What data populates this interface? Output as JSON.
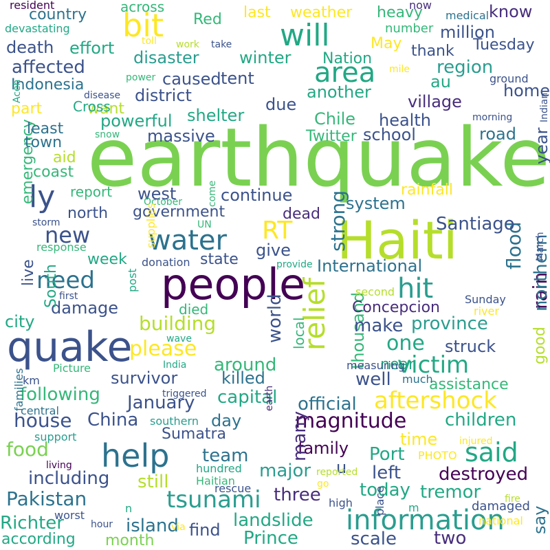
{
  "palette": {
    "green": "#7ad151",
    "lime": "#b5de2b",
    "yellow": "#fde725",
    "teal": "#22a884",
    "sea": "#2a9d8f",
    "blue": "#2c728e",
    "indigo": "#3b528b",
    "purple": "#472d7b",
    "violet": "#440154",
    "mint": "#35b779"
  },
  "words": [
    "earthquake",
    "Haiti",
    "people",
    "quake",
    "help",
    "information",
    "relief",
    "aftershock",
    "tsunami",
    "hit",
    "area",
    "will",
    "bit",
    "RT",
    "water",
    "said",
    "ly",
    "magnitude",
    "victim",
    "please",
    "new",
    "need",
    "one",
    "survivor",
    "killed",
    "house",
    "food",
    "Pakistan",
    "Richter",
    "island",
    "two",
    "scale",
    "Prince",
    "according",
    "month",
    "landslide",
    "find",
    "three",
    "today",
    "tremor",
    "say",
    "destroyed",
    "left",
    "Port",
    "family",
    "major",
    "u",
    "team",
    "still",
    "including",
    "China",
    "Sumatra",
    "day",
    "children",
    "time",
    "capital",
    "January",
    "following",
    "well",
    "near",
    "assistance",
    "official",
    "many",
    "thousand",
    "around",
    "building",
    "died",
    "local",
    "world",
    "make",
    "province",
    "struck",
    "good",
    "Concepcion",
    "damage",
    "city",
    "live",
    "South",
    "week",
    "state",
    "give",
    "International",
    "flood",
    "rain",
    "northern",
    "strong",
    "system",
    "Santiago",
    "north",
    "government",
    "dead",
    "continue",
    "west",
    "report",
    "rainfall",
    "coast",
    "aid",
    "emergency",
    "town",
    "least",
    "part",
    "want",
    "powerful",
    "massive",
    "shelter",
    "Chile",
    "health",
    "school",
    "road",
    "year",
    "home",
    "village",
    "district",
    "due",
    "another",
    "au",
    "region",
    "thank",
    "Tuesday",
    "May",
    "Nation",
    "winter",
    "caused",
    "tent",
    "disaster",
    "Indonesia",
    "affected",
    "effort",
    "death",
    "country",
    "devastating",
    "resident",
    "across",
    "Red",
    "last",
    "weather",
    "heavy",
    "know",
    "million",
    "now",
    "medical",
    "number",
    "toll",
    "work",
    "take",
    "power",
    "mile",
    "ground",
    "disease",
    "Aceh",
    "snow",
    "morning",
    "Indian",
    "Twitter",
    "October",
    "come",
    "storm",
    "UN",
    "supplies",
    "response",
    "donation",
    "provide",
    "March",
    "second",
    "first",
    "post",
    "Sunday",
    "river",
    "wave",
    "Picture",
    "India",
    "measuring",
    "much",
    "km",
    "families",
    "triggered",
    "central",
    "southern",
    "support",
    "earth",
    "injured",
    "PHOTO",
    "living",
    "hundred",
    "Haitian",
    "rescue",
    "reported",
    "go",
    "worst",
    "hour",
    "n",
    "high",
    "place",
    "m",
    "damaged",
    "fire",
    "via",
    "national",
    "Cross",
    "s"
  ]
}
